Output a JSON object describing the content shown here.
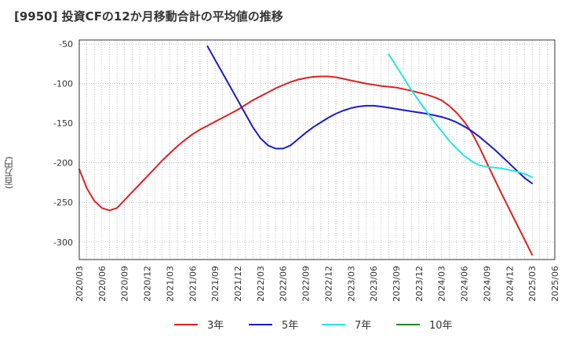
{
  "chart_data": {
    "type": "line",
    "title": "[9950]  投資CFの12か月移動合計の平均値の推移",
    "ylabel": "(百万円)",
    "xlabel": "",
    "ylim": [
      -322,
      -45
    ],
    "yticks": [
      -50,
      -100,
      -150,
      -200,
      -250,
      -300
    ],
    "xticks": [
      "2020/03",
      "2020/06",
      "2020/09",
      "2020/12",
      "2021/03",
      "2021/06",
      "2021/09",
      "2021/12",
      "2022/03",
      "2022/06",
      "2022/09",
      "2022/12",
      "2023/03",
      "2023/06",
      "2023/09",
      "2023/12",
      "2024/03",
      "2024/06",
      "2024/09",
      "2024/12",
      "2025/03",
      "2025/06"
    ],
    "grid": true,
    "legend_position": "bottom",
    "colors": {
      "3年": "#e02020",
      "5年": "#1a1acc",
      "7年": "#22e6e6",
      "10年": "#228822"
    },
    "series": [
      {
        "name": "3年",
        "color": "#e02020",
        "x": [
          "2020/03",
          "2020/04",
          "2020/05",
          "2020/06",
          "2020/07",
          "2020/08",
          "2020/09",
          "2020/10",
          "2020/11",
          "2020/12",
          "2021/01",
          "2021/02",
          "2021/03",
          "2021/04",
          "2021/05",
          "2021/06",
          "2021/07",
          "2021/08",
          "2021/09",
          "2021/10",
          "2021/11",
          "2021/12",
          "2022/01",
          "2022/02",
          "2022/03",
          "2022/04",
          "2022/05",
          "2022/06",
          "2022/07",
          "2022/08",
          "2022/09",
          "2022/10",
          "2022/11",
          "2022/12",
          "2023/01",
          "2023/02",
          "2023/03",
          "2023/04",
          "2023/05",
          "2023/06",
          "2023/07",
          "2023/08",
          "2023/09",
          "2023/10",
          "2023/11",
          "2023/12",
          "2024/01",
          "2024/02",
          "2024/03",
          "2024/04",
          "2024/05",
          "2024/06",
          "2024/07",
          "2024/08",
          "2024/09",
          "2024/10",
          "2024/11",
          "2024/12",
          "2025/01",
          "2025/02",
          "2025/03"
        ],
        "values": [
          -208,
          -232,
          -248,
          -257,
          -260,
          -257,
          -247,
          -237,
          -227,
          -217,
          -207,
          -197,
          -188,
          -179,
          -171,
          -164,
          -158,
          -153,
          -148,
          -143,
          -138,
          -133,
          -127,
          -121,
          -116,
          -111,
          -106,
          -102,
          -98,
          -95,
          -93,
          -91.5,
          -91,
          -91,
          -92,
          -94,
          -96,
          -98,
          -100,
          -101.5,
          -103,
          -104,
          -105,
          -107,
          -109,
          -111.5,
          -114,
          -117,
          -121,
          -128,
          -137,
          -148,
          -162,
          -180,
          -200,
          -220,
          -240,
          -259,
          -278,
          -297,
          -316
        ]
      },
      {
        "name": "5年",
        "color": "#1a1acc",
        "x": [
          "2021/08",
          "2021/09",
          "2021/10",
          "2021/11",
          "2021/12",
          "2022/01",
          "2022/02",
          "2022/03",
          "2022/04",
          "2022/05",
          "2022/06",
          "2022/07",
          "2022/08",
          "2022/09",
          "2022/10",
          "2022/11",
          "2022/12",
          "2023/01",
          "2023/02",
          "2023/03",
          "2023/04",
          "2023/05",
          "2023/06",
          "2023/07",
          "2023/08",
          "2023/09",
          "2023/10",
          "2023/11",
          "2023/12",
          "2024/01",
          "2024/02",
          "2024/03",
          "2024/04",
          "2024/05",
          "2024/06",
          "2024/07",
          "2024/08",
          "2024/09",
          "2024/10",
          "2024/11",
          "2024/12",
          "2025/01",
          "2025/02",
          "2025/03"
        ],
        "values": [
          -53,
          -70,
          -87,
          -104,
          -121,
          -138,
          -155,
          -169,
          -178,
          -182,
          -182,
          -178,
          -170,
          -162,
          -155,
          -149,
          -143,
          -138,
          -134,
          -131,
          -129,
          -128,
          -128,
          -129,
          -130.5,
          -132,
          -133.5,
          -135,
          -136.5,
          -138,
          -140,
          -142,
          -145,
          -149,
          -154,
          -160,
          -167,
          -175,
          -183,
          -192,
          -201,
          -210,
          -219,
          -226
        ]
      },
      {
        "name": "7年",
        "color": "#22e6e6",
        "x": [
          "2023/08",
          "2023/09",
          "2023/10",
          "2023/11",
          "2023/12",
          "2024/01",
          "2024/02",
          "2024/03",
          "2024/04",
          "2024/05",
          "2024/06",
          "2024/07",
          "2024/08",
          "2024/09",
          "2024/10",
          "2024/11",
          "2024/12",
          "2025/01",
          "2025/02",
          "2025/03"
        ],
        "values": [
          -63,
          -78,
          -93,
          -108,
          -122,
          -135,
          -148,
          -160,
          -172,
          -182,
          -191,
          -198,
          -203,
          -205,
          -206,
          -207,
          -209,
          -211,
          -214,
          -218
        ]
      },
      {
        "name": "10年",
        "color": "#228822",
        "x": [],
        "values": []
      }
    ]
  }
}
